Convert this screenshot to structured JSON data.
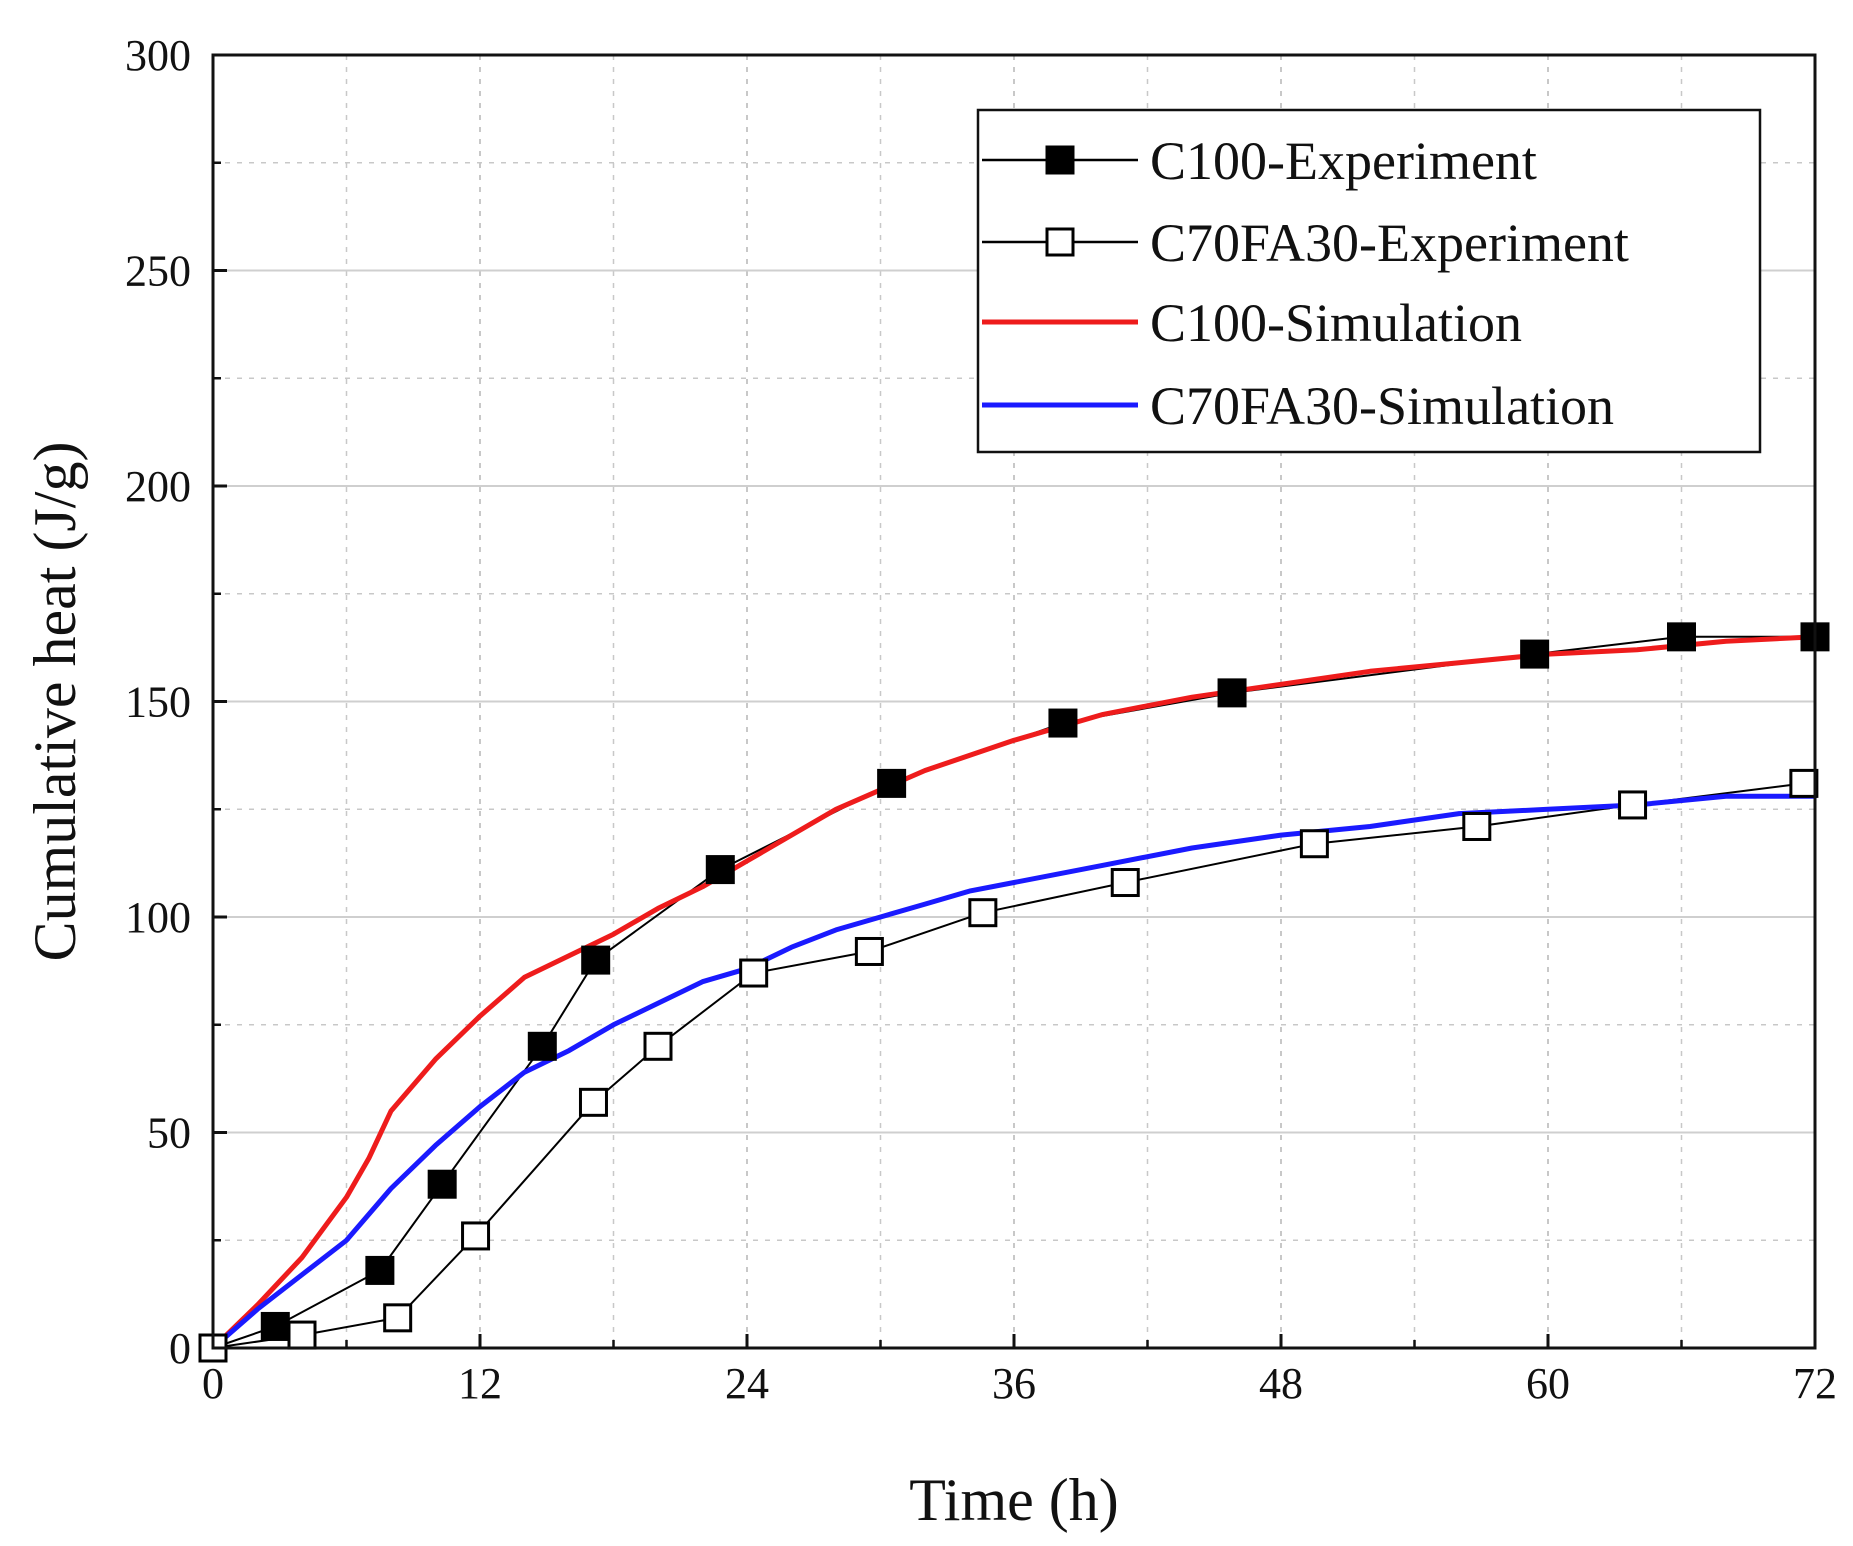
{
  "chart_data": {
    "type": "line",
    "title": "",
    "xlabel": "Time (h)",
    "ylabel": "Cumulative heat (J/g)",
    "xlim": [
      0,
      72
    ],
    "ylim": [
      0,
      300
    ],
    "xticks": [
      0,
      12,
      24,
      36,
      48,
      60,
      72
    ],
    "yticks": [
      0,
      50,
      100,
      150,
      200,
      250,
      300
    ],
    "grid": true,
    "legend_position": "top-right",
    "series": [
      {
        "name": "C100-Experiment",
        "style": "line-markers",
        "marker": "filled-square",
        "color": "#000000",
        "x": [
          0,
          2.8,
          7.5,
          10.3,
          14.8,
          17.2,
          22.8,
          30.5,
          38.2,
          45.8,
          59.4,
          66.0,
          72.0
        ],
        "y": [
          0,
          5,
          18,
          38,
          70,
          90,
          111,
          131,
          145,
          152,
          161,
          165,
          165
        ]
      },
      {
        "name": "C70FA30-Experiment",
        "style": "line-markers",
        "marker": "open-square",
        "color": "#000000",
        "x": [
          0,
          4.0,
          8.3,
          11.8,
          17.1,
          20.0,
          24.3,
          29.5,
          34.6,
          41.0,
          49.5,
          56.8,
          63.8,
          71.5
        ],
        "y": [
          0,
          3,
          7,
          26,
          57,
          70,
          87,
          92,
          101,
          108,
          117,
          121,
          126,
          131
        ]
      },
      {
        "name": "C100-Simulation",
        "style": "line",
        "color": "#ee1c1c",
        "x": [
          0,
          2,
          4,
          6,
          7,
          8,
          10,
          12,
          14,
          16,
          18,
          20,
          22,
          24,
          28,
          32,
          36,
          40,
          44,
          48,
          52,
          56,
          60,
          64,
          68,
          72
        ],
        "y": [
          0,
          10,
          21,
          35,
          44,
          55,
          67,
          77,
          86,
          91,
          96,
          102,
          107,
          113,
          125,
          134,
          141,
          147,
          151,
          154,
          157,
          159,
          161,
          162,
          164,
          165
        ]
      },
      {
        "name": "C70FA30-Simulation",
        "style": "line",
        "color": "#1a1aff",
        "x": [
          0,
          2,
          4,
          6,
          8,
          10,
          12,
          14,
          16,
          18,
          20,
          22,
          24,
          26,
          28,
          30,
          32,
          34,
          36,
          40,
          44,
          48,
          52,
          56,
          60,
          64,
          68,
          72
        ],
        "y": [
          0,
          9,
          17,
          25,
          37,
          47,
          56,
          64,
          69,
          75,
          80,
          85,
          88,
          93,
          97,
          100,
          103,
          106,
          108,
          112,
          116,
          119,
          121,
          124,
          125,
          126,
          128,
          128
        ]
      }
    ]
  }
}
